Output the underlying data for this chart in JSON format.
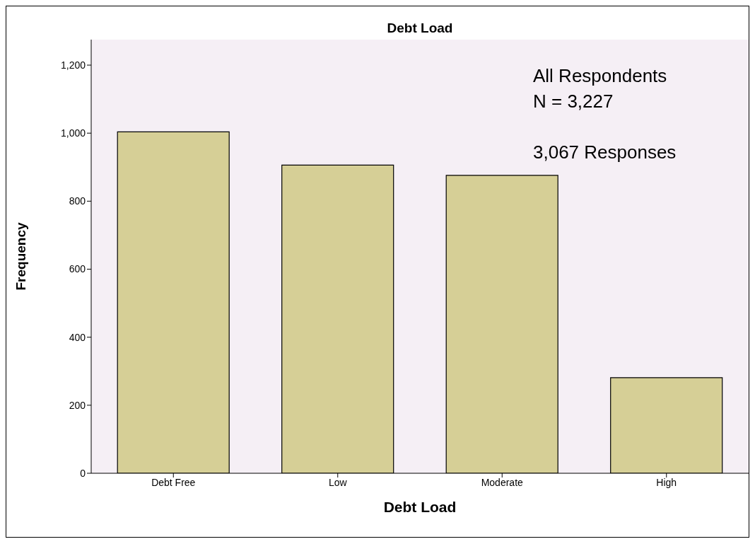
{
  "chart_data": {
    "type": "bar",
    "title": "Debt Load",
    "xlabel": "Debt Load",
    "ylabel": "Frequency",
    "categories": [
      "Debt Free",
      "Low",
      "Moderate",
      "High"
    ],
    "values": [
      1004,
      906,
      876,
      281
    ],
    "color": "#d6cf96",
    "ylim": [
      0,
      1275
    ],
    "yticks": [
      0,
      200,
      400,
      600,
      800,
      {
        "value": 1000,
        "label": "1,000"
      },
      {
        "value": 1200,
        "label": "1,200"
      }
    ],
    "grid": false,
    "annotations": [
      "All Respondents",
      "N = 3,227",
      "3,067 Responses"
    ]
  }
}
